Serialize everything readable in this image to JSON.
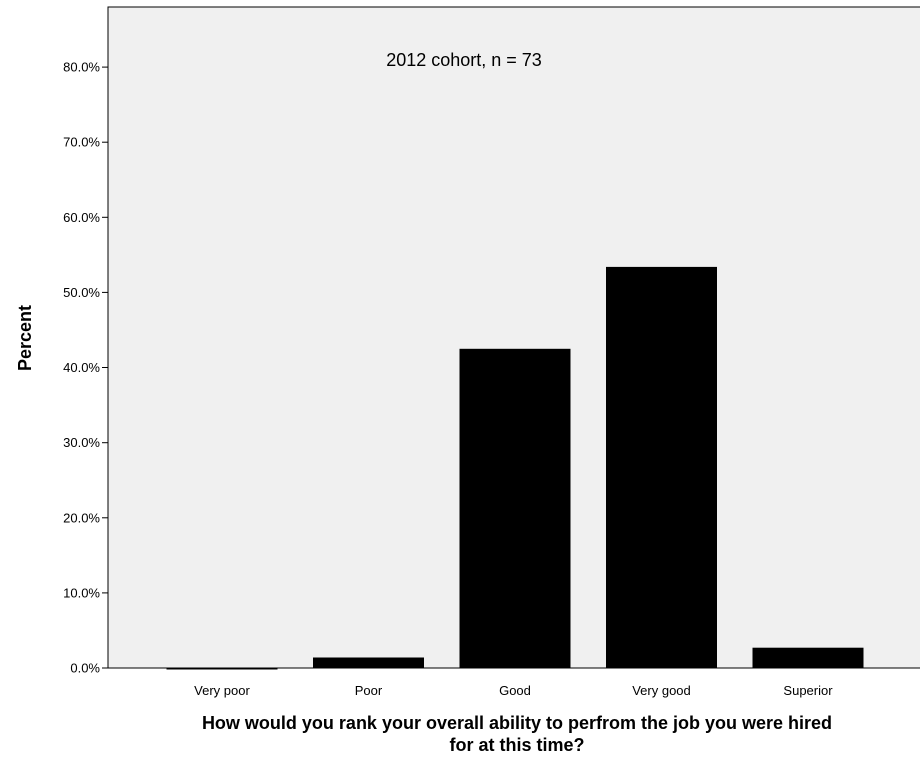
{
  "chart_data": {
    "type": "bar",
    "categories": [
      "Very poor",
      "Poor",
      "Good",
      "Very good",
      "Superior"
    ],
    "values": [
      0.0,
      1.4,
      42.5,
      53.4,
      2.7
    ],
    "annotation": "2012 cohort, n = 73",
    "xlabel_lines": [
      "How would you rank your overall ability to perfrom the job you were hired",
      "for at this time?"
    ],
    "ylabel": "Percent",
    "ylim": [
      0,
      88
    ],
    "yticks": [
      0,
      10,
      20,
      30,
      40,
      50,
      60,
      70,
      80
    ],
    "ytick_labels": [
      "0.0%",
      "10.0%",
      "20.0%",
      "30.0%",
      "40.0%",
      "50.0%",
      "60.0%",
      "70.0%",
      "80.0%"
    ],
    "grid": false,
    "plot_background": "#f0f0f0",
    "bar_color": "#000000"
  }
}
